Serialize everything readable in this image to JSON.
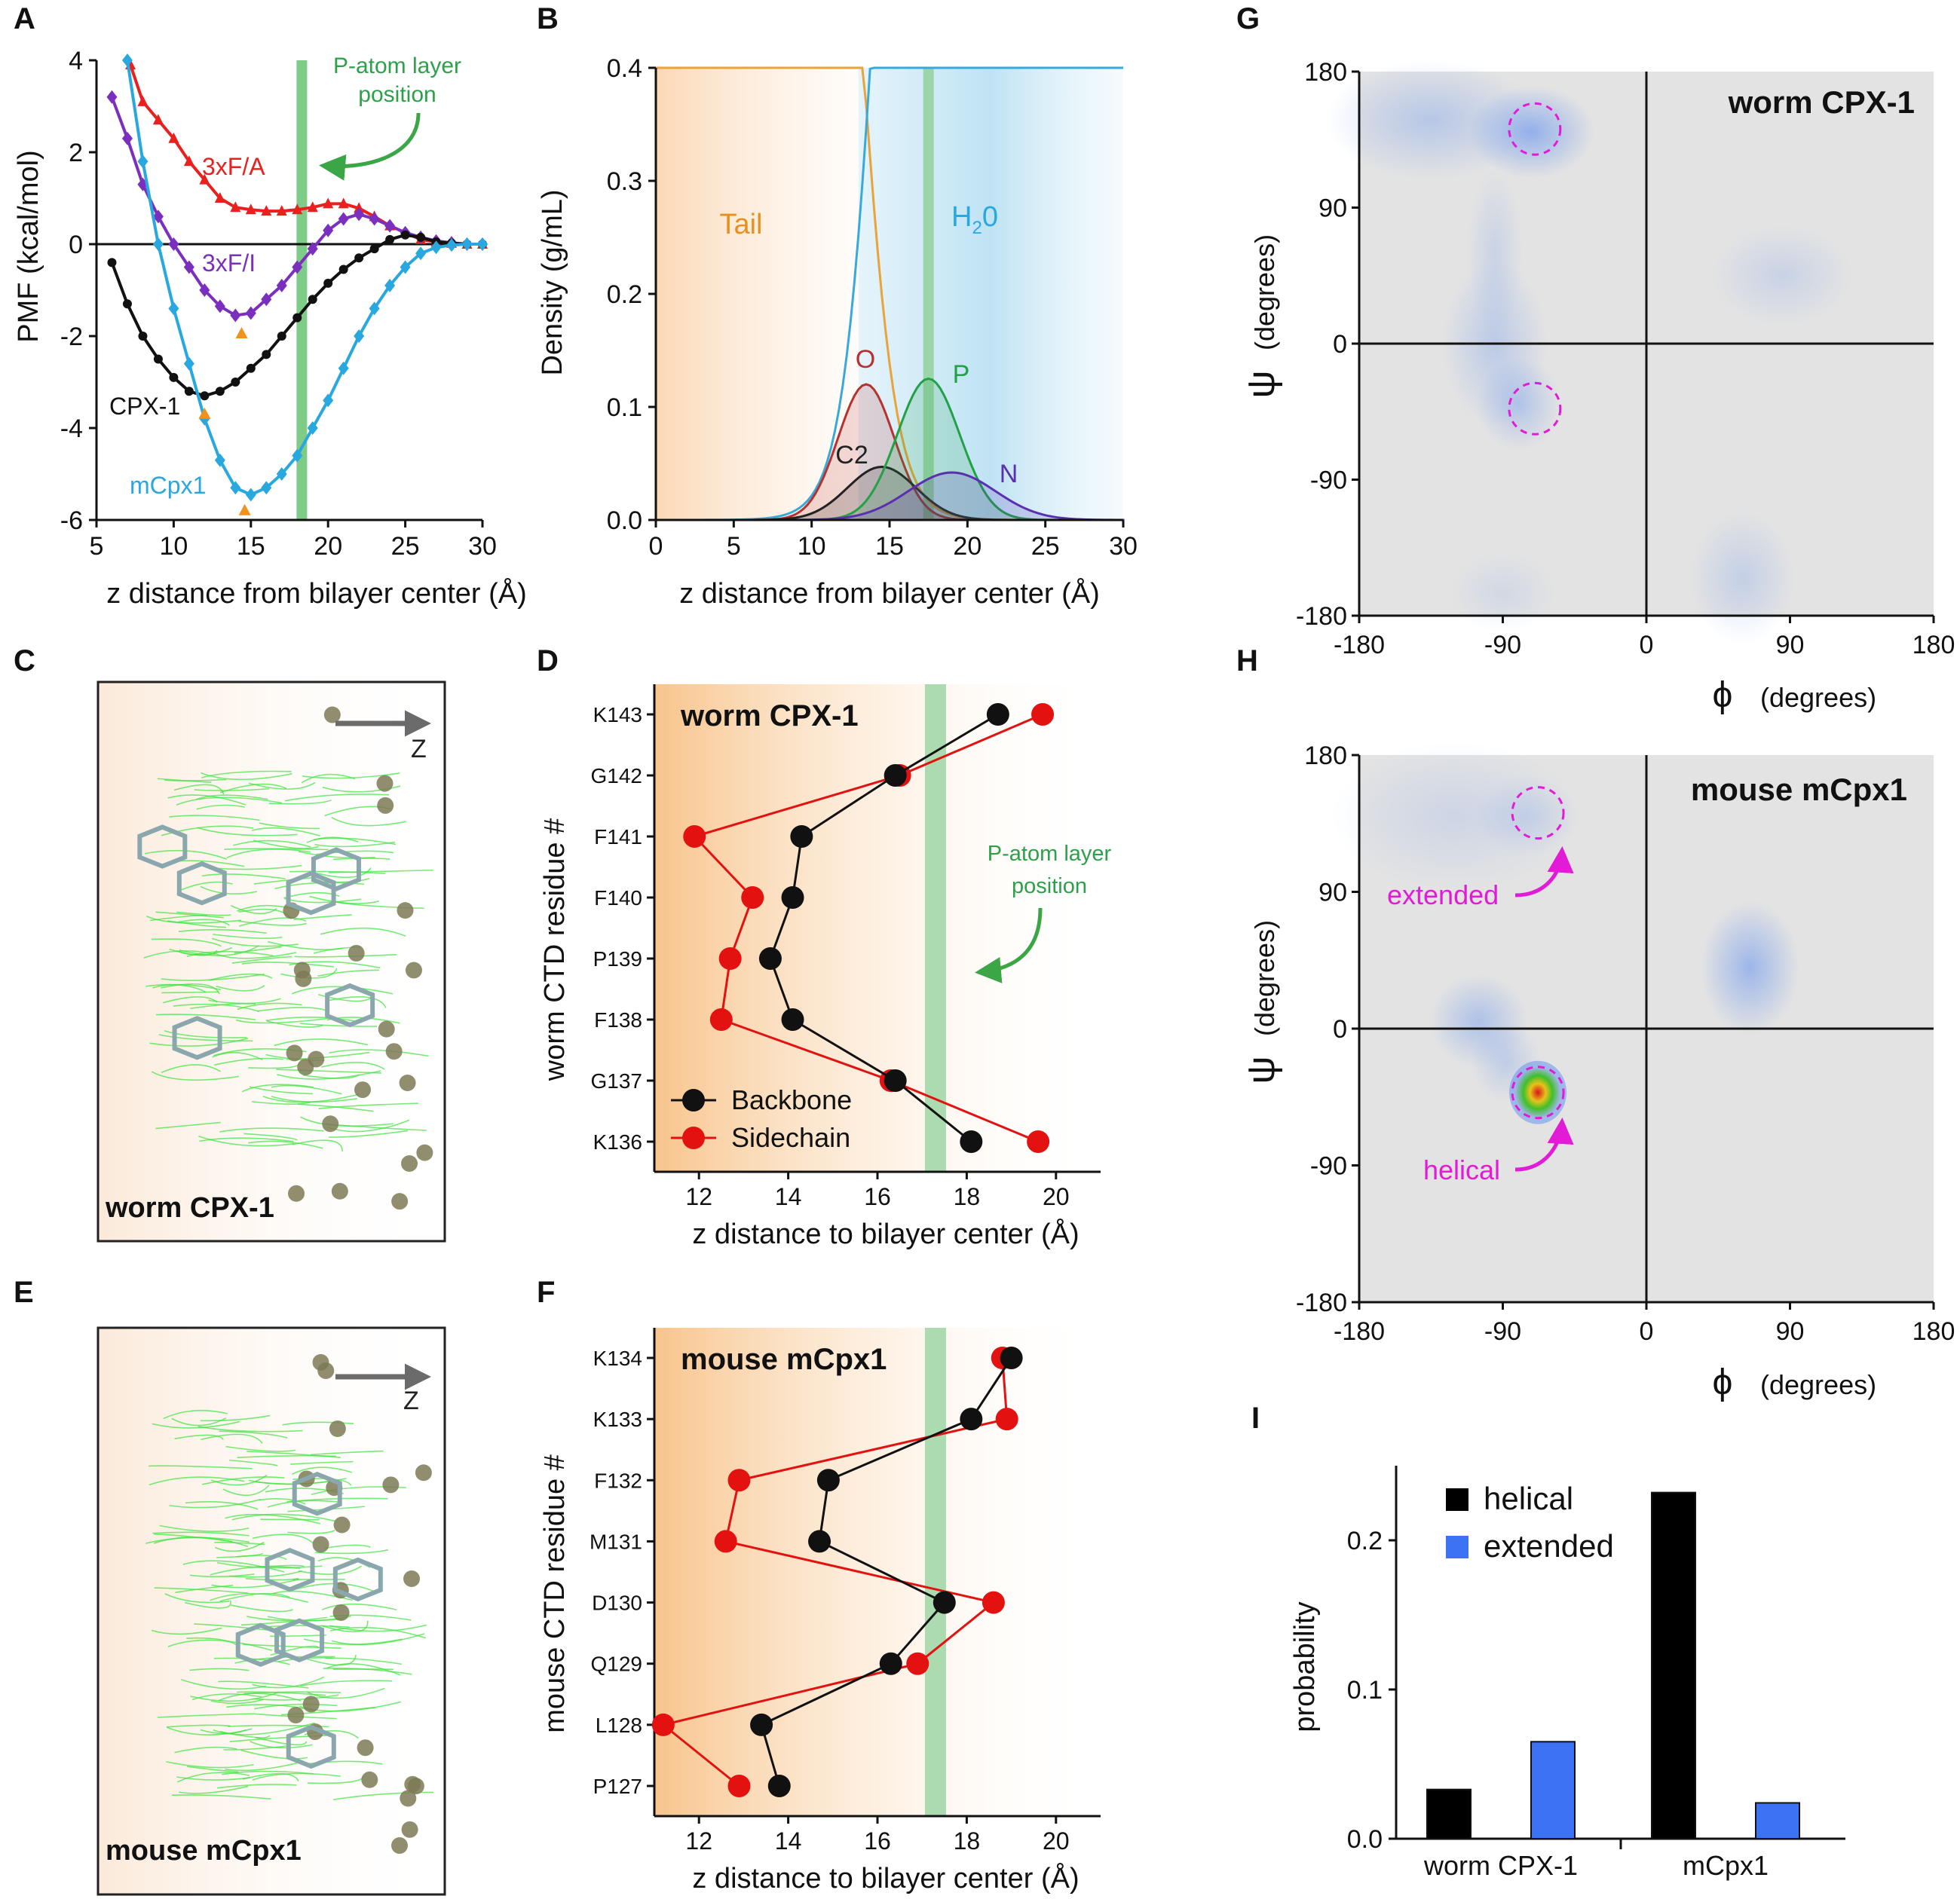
{
  "panels": {
    "A": {
      "label": "A",
      "type": "line",
      "xlabel": "z distance from bilayer center (Å)",
      "ylabel": "PMF (kcal/mol)",
      "xlim": [
        5,
        30
      ],
      "ylim": [
        -6,
        4
      ],
      "xticks": [
        5,
        10,
        15,
        20,
        25,
        30
      ],
      "yticks": [
        -6,
        -4,
        -2,
        0,
        2,
        4
      ],
      "annotation": [
        "P-atom layer",
        "position"
      ],
      "p_layer_z": 18.3,
      "series": [
        {
          "name": "3xF/A",
          "color": "#e8201e",
          "marker": "triangle",
          "x": [
            7.2,
            8,
            9,
            10,
            11,
            12,
            13,
            14,
            15,
            16,
            17,
            18,
            19,
            20,
            21,
            22,
            23,
            24,
            25,
            26,
            27,
            28,
            29,
            30
          ],
          "y": [
            3.9,
            3.1,
            2.7,
            2.3,
            1.8,
            1.4,
            1.0,
            0.8,
            0.75,
            0.72,
            0.72,
            0.75,
            0.8,
            0.88,
            0.88,
            0.78,
            0.6,
            0.4,
            0.25,
            0.1,
            0.05,
            0.02,
            0.0,
            0.0
          ]
        },
        {
          "name": "3xF/I",
          "color": "#7b2fbe",
          "marker": "diamond",
          "x": [
            6,
            7,
            8,
            9,
            10,
            11,
            12,
            13,
            14,
            15,
            16,
            17,
            18,
            19,
            20,
            21,
            22,
            23,
            24,
            25,
            26,
            27,
            28,
            29,
            30
          ],
          "y": [
            3.2,
            2.3,
            1.3,
            0.6,
            0.0,
            -0.5,
            -1.0,
            -1.35,
            -1.55,
            -1.5,
            -1.2,
            -0.9,
            -0.5,
            -0.1,
            0.3,
            0.55,
            0.65,
            0.55,
            0.4,
            0.25,
            0.15,
            0.07,
            0.03,
            0.0,
            0.0
          ]
        },
        {
          "name": "CPX-1",
          "color": "#111111",
          "marker": "circle",
          "x": [
            6,
            7,
            8,
            9,
            10,
            11,
            12,
            13,
            14,
            15,
            16,
            17,
            18,
            19,
            20,
            21,
            22,
            23,
            24,
            25,
            26,
            27,
            28,
            29,
            30
          ],
          "y": [
            -0.4,
            -1.3,
            -2.0,
            -2.5,
            -2.9,
            -3.2,
            -3.3,
            -3.2,
            -3.0,
            -2.7,
            -2.4,
            -2.0,
            -1.6,
            -1.2,
            -0.85,
            -0.55,
            -0.3,
            -0.1,
            0.1,
            0.2,
            0.15,
            0.05,
            0.02,
            0.0,
            0.0
          ]
        },
        {
          "name": "mCpx1",
          "color": "#29a8e0",
          "marker": "diamond",
          "x": [
            7,
            8,
            9,
            10,
            11,
            12,
            13,
            14,
            15,
            16,
            17,
            18,
            19,
            20,
            21,
            22,
            23,
            24,
            25,
            26,
            27,
            28,
            29,
            30
          ],
          "y": [
            4.0,
            1.8,
            0.0,
            -1.4,
            -2.6,
            -3.8,
            -4.7,
            -5.3,
            -5.45,
            -5.3,
            -5.0,
            -4.6,
            -4.0,
            -3.4,
            -2.7,
            -2.0,
            -1.4,
            -0.9,
            -0.5,
            -0.2,
            -0.07,
            -0.02,
            0.0,
            0.0
          ]
        }
      ],
      "minima_markers": [
        {
          "x": 14.4,
          "y": -1.95
        },
        {
          "x": 12.0,
          "y": -3.7
        },
        {
          "x": 14.6,
          "y": -5.8
        }
      ]
    },
    "B": {
      "label": "B",
      "type": "area",
      "xlabel": "z distance from bilayer center (Å)",
      "ylabel": "Density (g/mL)",
      "xlim": [
        0,
        30
      ],
      "ylim": [
        0,
        0.4
      ],
      "xticks": [
        0,
        5,
        10,
        15,
        20,
        25,
        30
      ],
      "yticks": [
        "0.0",
        "0.1",
        "0.2",
        "0.3",
        "0.4"
      ],
      "p_layer_z": 17.5,
      "region_labels": {
        "tail": "Tail",
        "water": "H",
        "water_sub": "2",
        "water_tail": "0"
      },
      "series": [
        {
          "name": "O",
          "color": "#b5322f",
          "center": 13.5,
          "sigma": 1.8,
          "peak": 0.12
        },
        {
          "name": "C2",
          "color": "#222222",
          "center": 14.5,
          "sigma": 2.2,
          "peak": 0.047
        },
        {
          "name": "P",
          "color": "#23a048",
          "center": 17.5,
          "sigma": 2.0,
          "peak": 0.125
        },
        {
          "name": "N",
          "color": "#5a2fb0",
          "center": 19.0,
          "sigma": 2.8,
          "peak": 0.042
        }
      ]
    },
    "C": {
      "label": "C",
      "caption": "worm CPX-1",
      "axis_label": "Z"
    },
    "D": {
      "label": "D",
      "type": "line",
      "title": "worm CPX-1",
      "xlabel": "z distance to bilayer center (Å)",
      "ylabel": "worm CTD residue #",
      "xlim": [
        11,
        21
      ],
      "xticks": [
        12,
        14,
        16,
        18,
        20
      ],
      "p_layer_z": 17.3,
      "annotation": [
        "P-atom layer",
        "position"
      ],
      "categories": [
        "K143",
        "G142",
        "F141",
        "F140",
        "P139",
        "F138",
        "G137",
        "K136"
      ],
      "series": [
        {
          "name": "Backbone",
          "color": "#111111",
          "values": [
            18.7,
            16.4,
            14.3,
            14.1,
            13.6,
            14.1,
            16.4,
            18.1
          ]
        },
        {
          "name": "Sidechain",
          "color": "#e3110f",
          "values": [
            19.7,
            16.5,
            11.9,
            13.2,
            12.7,
            12.5,
            16.3,
            19.6
          ]
        }
      ]
    },
    "E": {
      "label": "E",
      "caption": "mouse mCpx1",
      "axis_label": "Z"
    },
    "F": {
      "label": "F",
      "type": "line",
      "title": "mouse mCpx1",
      "xlabel": "z distance to bilayer center (Å)",
      "ylabel": "mouse CTD residue #",
      "xlim": [
        11,
        21
      ],
      "xticks": [
        12,
        14,
        16,
        18,
        20
      ],
      "p_layer_z": 17.3,
      "categories": [
        "K134",
        "K133",
        "F132",
        "M131",
        "D130",
        "Q129",
        "L128",
        "P127"
      ],
      "series": [
        {
          "name": "Backbone",
          "color": "#111111",
          "values": [
            19.0,
            18.1,
            14.9,
            14.7,
            17.5,
            16.3,
            13.4,
            13.8
          ]
        },
        {
          "name": "Sidechain",
          "color": "#e3110f",
          "values": [
            18.8,
            18.9,
            12.9,
            12.6,
            18.6,
            16.9,
            11.2,
            12.9
          ]
        }
      ]
    },
    "G": {
      "label": "G",
      "type": "heatmap",
      "title": "worm CPX-1",
      "xlabel_symbol": "ϕ",
      "ylabel_symbol": "ψ",
      "unit_label": "(degrees)",
      "xlim": [
        -180,
        180
      ],
      "ylim": [
        -180,
        180
      ],
      "ticks": [
        -180,
        -90,
        0,
        90,
        180
      ],
      "blobs": [
        {
          "phi": -135,
          "psi": 148,
          "spread_phi": 30,
          "spread_psi": 18,
          "weight": 0.5
        },
        {
          "phi": -72,
          "psi": 140,
          "spread_phi": 18,
          "spread_psi": 14,
          "weight": 0.9
        },
        {
          "phi": -95,
          "psi": 0,
          "spread_phi": 15,
          "spread_psi": 25,
          "weight": 0.45
        },
        {
          "phi": -80,
          "psi": -40,
          "spread_phi": 12,
          "spread_psi": 14,
          "weight": 0.55
        },
        {
          "phi": -95,
          "psi": 60,
          "spread_phi": 8,
          "spread_psi": 25,
          "weight": 0.3
        },
        {
          "phi": 85,
          "psi": 45,
          "spread_phi": 20,
          "spread_psi": 15,
          "weight": 0.3
        },
        {
          "phi": 60,
          "psi": -155,
          "spread_phi": 15,
          "spread_psi": 20,
          "weight": 0.35
        },
        {
          "phi": -90,
          "psi": -165,
          "spread_phi": 15,
          "spread_psi": 12,
          "weight": 0.2
        }
      ],
      "circles": [
        {
          "phi": -70,
          "psi": 142
        },
        {
          "phi": -70,
          "psi": -43
        }
      ]
    },
    "H": {
      "label": "H",
      "type": "heatmap",
      "title": "mouse mCpx1",
      "xlabel_symbol": "ϕ",
      "ylabel_symbol": "ψ",
      "unit_label": "(degrees)",
      "xlim": [
        -180,
        180
      ],
      "ylim": [
        -180,
        180
      ],
      "ticks": [
        -180,
        -90,
        0,
        90,
        180
      ],
      "annotations": {
        "extended": "extended",
        "helical": "helical"
      },
      "blobs": [
        {
          "phi": -120,
          "psi": 140,
          "spread_phi": 35,
          "spread_psi": 22,
          "weight": 0.25
        },
        {
          "phi": -75,
          "psi": 140,
          "spread_phi": 15,
          "spread_psi": 12,
          "weight": 0.3
        },
        {
          "phi": 65,
          "psi": 40,
          "spread_phi": 14,
          "spread_psi": 20,
          "weight": 0.8
        },
        {
          "phi": -105,
          "psi": 5,
          "spread_phi": 14,
          "spread_psi": 14,
          "weight": 0.6
        },
        {
          "phi": -88,
          "psi": -22,
          "spread_phi": 10,
          "spread_psi": 12,
          "weight": 0.4
        }
      ],
      "hotspot": {
        "phi": -68,
        "psi": -42
      },
      "circles": [
        {
          "phi": -68,
          "psi": 142
        },
        {
          "phi": -68,
          "psi": -42
        }
      ]
    },
    "I": {
      "label": "I",
      "type": "bar",
      "ylabel": "probability",
      "ylim": [
        0,
        0.25
      ],
      "yticks": [
        "0.0",
        "0.1",
        "0.2"
      ],
      "categories": [
        "worm CPX-1",
        "mCpx1"
      ],
      "series": [
        {
          "name": "helical",
          "color": "#000000",
          "values": [
            0.033,
            0.232
          ]
        },
        {
          "name": "extended",
          "color": "#3d72f5",
          "values": [
            0.065,
            0.024
          ]
        }
      ]
    }
  }
}
